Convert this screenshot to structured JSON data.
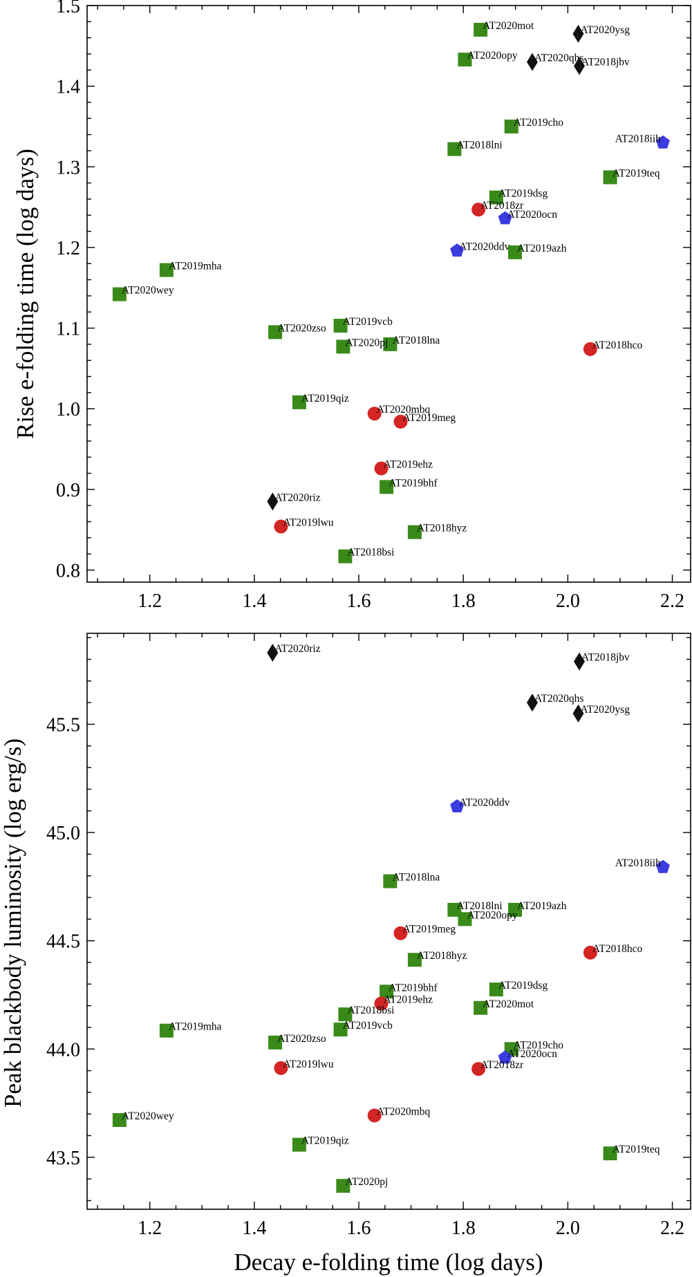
{
  "colors": {
    "square": "#3a8a1a",
    "circle": "#d42525",
    "pentagon": "#3b3be0",
    "diamond": "#111111"
  },
  "chart_data": [
    {
      "type": "scatter",
      "title": "",
      "xlabel": "",
      "ylabel": "Rise e-folding time (log days)",
      "xlim": [
        1.08,
        2.235
      ],
      "ylim": [
        0.785,
        1.5
      ],
      "xticks": [
        1.2,
        1.4,
        1.6,
        1.8,
        2.0,
        2.2
      ],
      "xticklabels": [
        "1.2",
        "1.4",
        "1.6",
        "1.8",
        "2.0",
        "2.2"
      ],
      "yticks": [
        0.8,
        0.9,
        1.0,
        1.1,
        1.2,
        1.3,
        1.4,
        1.5
      ],
      "yticklabels": [
        "0.8",
        "0.9",
        "1.0",
        "1.1",
        "1.2",
        "1.3",
        "1.4",
        "1.5"
      ],
      "points": [
        {
          "label": "AT2020mot",
          "x": 1.833,
          "y": 1.47,
          "marker": "square"
        },
        {
          "label": "AT2020ysg",
          "x": 2.02,
          "y": 1.465,
          "marker": "diamond"
        },
        {
          "label": "AT2020opy",
          "x": 1.803,
          "y": 1.433,
          "marker": "square"
        },
        {
          "label": "AT2020qhs",
          "x": 1.932,
          "y": 1.43,
          "marker": "diamond"
        },
        {
          "label": "AT2018jbv",
          "x": 2.022,
          "y": 1.425,
          "marker": "diamond"
        },
        {
          "label": "AT2019cho",
          "x": 1.892,
          "y": 1.35,
          "marker": "square"
        },
        {
          "label": "AT2018iih",
          "x": 2.182,
          "y": 1.33,
          "marker": "pentagon",
          "label_side": "left"
        },
        {
          "label": "AT2018lni",
          "x": 1.783,
          "y": 1.322,
          "marker": "square"
        },
        {
          "label": "AT2019teq",
          "x": 2.081,
          "y": 1.287,
          "marker": "square"
        },
        {
          "label": "AT2019dsg",
          "x": 1.863,
          "y": 1.262,
          "marker": "square"
        },
        {
          "label": "AT2018zr",
          "x": 1.829,
          "y": 1.247,
          "marker": "circle"
        },
        {
          "label": "AT2020ocn",
          "x": 1.88,
          "y": 1.236,
          "marker": "pentagon"
        },
        {
          "label": "AT2020ddv",
          "x": 1.788,
          "y": 1.196,
          "marker": "pentagon"
        },
        {
          "label": "AT2019azh",
          "x": 1.899,
          "y": 1.194,
          "marker": "square"
        },
        {
          "label": "AT2019mha",
          "x": 1.232,
          "y": 1.172,
          "marker": "square"
        },
        {
          "label": "AT2020wey",
          "x": 1.142,
          "y": 1.142,
          "marker": "square"
        },
        {
          "label": "AT2019vcb",
          "x": 1.565,
          "y": 1.103,
          "marker": "square"
        },
        {
          "label": "AT2020zso",
          "x": 1.44,
          "y": 1.095,
          "marker": "square"
        },
        {
          "label": "AT2018lna",
          "x": 1.66,
          "y": 1.08,
          "marker": "square"
        },
        {
          "label": "AT2020pj",
          "x": 1.57,
          "y": 1.077,
          "marker": "square"
        },
        {
          "label": "AT2018hco",
          "x": 2.043,
          "y": 1.074,
          "marker": "circle"
        },
        {
          "label": "AT2019qiz",
          "x": 1.486,
          "y": 1.008,
          "marker": "square"
        },
        {
          "label": "AT2020mbq",
          "x": 1.63,
          "y": 0.994,
          "marker": "circle"
        },
        {
          "label": "AT2019meg",
          "x": 1.68,
          "y": 0.984,
          "marker": "circle"
        },
        {
          "label": "AT2019ehz",
          "x": 1.643,
          "y": 0.926,
          "marker": "circle"
        },
        {
          "label": "AT2019bhf",
          "x": 1.653,
          "y": 0.903,
          "marker": "square"
        },
        {
          "label": "AT2020riz",
          "x": 1.435,
          "y": 0.885,
          "marker": "diamond"
        },
        {
          "label": "AT2019lwu",
          "x": 1.451,
          "y": 0.854,
          "marker": "circle"
        },
        {
          "label": "AT2018hyz",
          "x": 1.707,
          "y": 0.847,
          "marker": "square"
        },
        {
          "label": "AT2018bsi",
          "x": 1.574,
          "y": 0.817,
          "marker": "square"
        }
      ]
    },
    {
      "type": "scatter",
      "title": "",
      "xlabel": "Decay e-folding time (log days)",
      "ylabel": "Peak blackbody luminosity (log erg/s)",
      "xlim": [
        1.08,
        2.235
      ],
      "ylim": [
        43.26,
        45.92
      ],
      "xticks": [
        1.2,
        1.4,
        1.6,
        1.8,
        2.0,
        2.2
      ],
      "xticklabels": [
        "1.2",
        "1.4",
        "1.6",
        "1.8",
        "2.0",
        "2.2"
      ],
      "yticks": [
        43.5,
        44.0,
        44.5,
        45.0,
        45.5
      ],
      "yticklabels": [
        "43.5",
        "44.0",
        "44.5",
        "45.0",
        "45.5"
      ],
      "points": [
        {
          "label": "AT2020riz",
          "x": 1.435,
          "y": 45.83,
          "marker": "diamond"
        },
        {
          "label": "AT2018jbv",
          "x": 2.022,
          "y": 45.79,
          "marker": "diamond"
        },
        {
          "label": "AT2020qhs",
          "x": 1.932,
          "y": 45.6,
          "marker": "diamond"
        },
        {
          "label": "AT2020ysg",
          "x": 2.02,
          "y": 45.55,
          "marker": "diamond"
        },
        {
          "label": "AT2020ddv",
          "x": 1.788,
          "y": 45.12,
          "marker": "pentagon"
        },
        {
          "label": "AT2018iih",
          "x": 2.182,
          "y": 44.84,
          "marker": "pentagon",
          "label_side": "left"
        },
        {
          "label": "AT2018lna",
          "x": 1.66,
          "y": 44.775,
          "marker": "square"
        },
        {
          "label": "AT2018lni",
          "x": 1.783,
          "y": 44.643,
          "marker": "square"
        },
        {
          "label": "AT2019azh",
          "x": 1.899,
          "y": 44.643,
          "marker": "square"
        },
        {
          "label": "AT2020opy",
          "x": 1.803,
          "y": 44.6,
          "marker": "square"
        },
        {
          "label": "AT2019meg",
          "x": 1.68,
          "y": 44.535,
          "marker": "circle"
        },
        {
          "label": "AT2018hco",
          "x": 2.043,
          "y": 44.445,
          "marker": "circle"
        },
        {
          "label": "AT2018hyz",
          "x": 1.707,
          "y": 44.412,
          "marker": "square"
        },
        {
          "label": "AT2019dsg",
          "x": 1.863,
          "y": 44.275,
          "marker": "square"
        },
        {
          "label": "AT2019bhf",
          "x": 1.653,
          "y": 44.265,
          "marker": "square"
        },
        {
          "label": "AT2019ehz",
          "x": 1.643,
          "y": 44.21,
          "marker": "circle"
        },
        {
          "label": "AT2020mot",
          "x": 1.833,
          "y": 44.19,
          "marker": "square"
        },
        {
          "label": "AT2018bsi",
          "x": 1.574,
          "y": 44.16,
          "marker": "square"
        },
        {
          "label": "AT2019vcb",
          "x": 1.565,
          "y": 44.09,
          "marker": "square"
        },
        {
          "label": "AT2019mha",
          "x": 1.232,
          "y": 44.085,
          "marker": "square"
        },
        {
          "label": "AT2020zso",
          "x": 1.44,
          "y": 44.03,
          "marker": "square"
        },
        {
          "label": "AT2019cho",
          "x": 1.892,
          "y": 44.0,
          "marker": "square"
        },
        {
          "label": "AT2020ocn",
          "x": 1.88,
          "y": 43.96,
          "marker": "pentagon"
        },
        {
          "label": "AT2019lwu",
          "x": 1.451,
          "y": 43.912,
          "marker": "circle"
        },
        {
          "label": "AT2018zr",
          "x": 1.829,
          "y": 43.908,
          "marker": "circle"
        },
        {
          "label": "AT2020mbq",
          "x": 1.63,
          "y": 43.693,
          "marker": "circle"
        },
        {
          "label": "AT2020wey",
          "x": 1.142,
          "y": 43.672,
          "marker": "square"
        },
        {
          "label": "AT2019qiz",
          "x": 1.486,
          "y": 43.558,
          "marker": "square"
        },
        {
          "label": "AT2019teq",
          "x": 2.081,
          "y": 43.518,
          "marker": "square"
        },
        {
          "label": "AT2020pj",
          "x": 1.57,
          "y": 43.368,
          "marker": "square"
        }
      ]
    }
  ]
}
